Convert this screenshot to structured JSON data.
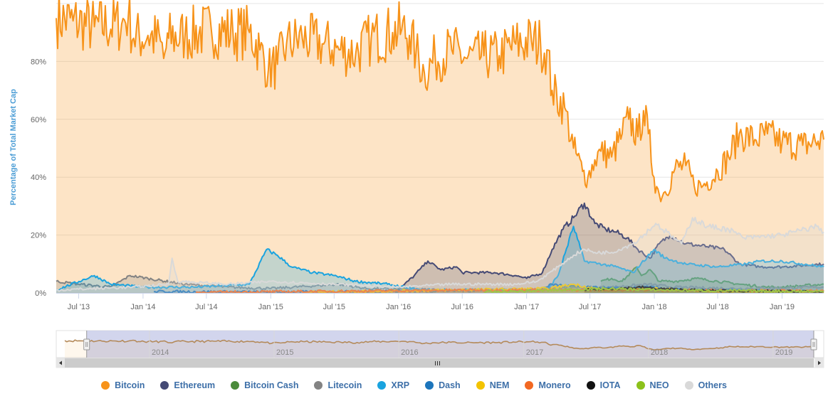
{
  "chart_data": {
    "type": "area",
    "ylabel": "Percentage of Total Market Cap",
    "ylim": [
      0,
      100
    ],
    "yticks": [
      {
        "value": 0,
        "label": "0%"
      },
      {
        "value": 20,
        "label": "20%"
      },
      {
        "value": 40,
        "label": "40%"
      },
      {
        "value": 60,
        "label": "60%"
      },
      {
        "value": 80,
        "label": "80%"
      }
    ],
    "xrange": [
      "2013-04-28",
      "2019-04-30"
    ],
    "xticks": [
      {
        "date": "2013-07-01",
        "label": "Jul '13"
      },
      {
        "date": "2014-01-01",
        "label": "Jan '14"
      },
      {
        "date": "2014-07-01",
        "label": "Jul '14"
      },
      {
        "date": "2015-01-01",
        "label": "Jan '15"
      },
      {
        "date": "2015-07-01",
        "label": "Jul '15"
      },
      {
        "date": "2016-01-01",
        "label": "Jan '16"
      },
      {
        "date": "2016-07-01",
        "label": "Jul '16"
      },
      {
        "date": "2017-01-01",
        "label": "Jan '17"
      },
      {
        "date": "2017-07-01",
        "label": "Jul '17"
      },
      {
        "date": "2018-01-01",
        "label": "Jan '18"
      },
      {
        "date": "2018-07-01",
        "label": "Jul '18"
      },
      {
        "date": "2019-01-01",
        "label": "Jan '19"
      }
    ],
    "navigator_labels": [
      {
        "date": "2014-01-01",
        "label": "2014"
      },
      {
        "date": "2015-01-01",
        "label": "2015"
      },
      {
        "date": "2016-01-01",
        "label": "2016"
      },
      {
        "date": "2017-01-01",
        "label": "2017"
      },
      {
        "date": "2018-01-01",
        "label": "2018"
      },
      {
        "date": "2019-01-01",
        "label": "2019"
      }
    ],
    "grid": true,
    "legend_position": "bottom",
    "series": [
      {
        "name": "Bitcoin",
        "color": "#f7931a",
        "points": [
          [
            "2013-04-28",
            95
          ],
          [
            "2013-06-15",
            94
          ],
          [
            "2013-08-15",
            92
          ],
          [
            "2013-11-01",
            93
          ],
          [
            "2013-11-20",
            96
          ],
          [
            "2013-12-05",
            88
          ],
          [
            "2014-01-15",
            89
          ],
          [
            "2014-02-20",
            87
          ],
          [
            "2014-03-01",
            81
          ],
          [
            "2014-03-15",
            88
          ],
          [
            "2014-05-01",
            89
          ],
          [
            "2014-07-15",
            91
          ],
          [
            "2014-09-15",
            90
          ],
          [
            "2014-11-01",
            90
          ],
          [
            "2014-12-01",
            84
          ],
          [
            "2014-12-25",
            77
          ],
          [
            "2015-01-20",
            79
          ],
          [
            "2015-02-15",
            86
          ],
          [
            "2015-04-01",
            88
          ],
          [
            "2015-06-01",
            86
          ],
          [
            "2015-07-15",
            84
          ],
          [
            "2015-09-01",
            83
          ],
          [
            "2015-10-15",
            88
          ],
          [
            "2015-12-15",
            90
          ],
          [
            "2016-01-10",
            91
          ],
          [
            "2016-02-01",
            89
          ],
          [
            "2016-02-20",
            83
          ],
          [
            "2016-03-15",
            76
          ],
          [
            "2016-04-15",
            81
          ],
          [
            "2016-06-01",
            84
          ],
          [
            "2016-07-15",
            81
          ],
          [
            "2016-09-01",
            82
          ],
          [
            "2016-10-15",
            82
          ],
          [
            "2016-12-01",
            86
          ],
          [
            "2017-01-15",
            87
          ],
          [
            "2017-02-10",
            86
          ],
          [
            "2017-02-28",
            84
          ],
          [
            "2017-03-15",
            70
          ],
          [
            "2017-04-20",
            64
          ],
          [
            "2017-05-15",
            50
          ],
          [
            "2017-06-10",
            42
          ],
          [
            "2017-06-25",
            40
          ],
          [
            "2017-07-15",
            46
          ],
          [
            "2017-08-01",
            49
          ],
          [
            "2017-09-01",
            47
          ],
          [
            "2017-10-01",
            55
          ],
          [
            "2017-10-20",
            60
          ],
          [
            "2017-11-15",
            54
          ],
          [
            "2017-12-01",
            63
          ],
          [
            "2017-12-15",
            55
          ],
          [
            "2017-12-31",
            40
          ],
          [
            "2018-01-15",
            34
          ],
          [
            "2018-02-01",
            35
          ],
          [
            "2018-03-01",
            43
          ],
          [
            "2018-04-01",
            44
          ],
          [
            "2018-04-25",
            37
          ],
          [
            "2018-05-20",
            37
          ],
          [
            "2018-07-01",
            42
          ],
          [
            "2018-08-01",
            47
          ],
          [
            "2018-09-01",
            55
          ],
          [
            "2018-10-15",
            53
          ],
          [
            "2018-11-20",
            55
          ],
          [
            "2019-01-01",
            52
          ],
          [
            "2019-03-01",
            51
          ],
          [
            "2019-04-30",
            53
          ]
        ]
      },
      {
        "name": "Ethereum",
        "color": "#454a75",
        "points": [
          [
            "2015-08-07",
            0.3
          ],
          [
            "2016-01-01",
            1
          ],
          [
            "2016-02-15",
            6
          ],
          [
            "2016-03-01",
            8
          ],
          [
            "2016-03-25",
            11
          ],
          [
            "2016-05-01",
            8
          ],
          [
            "2016-06-15",
            9
          ],
          [
            "2016-07-01",
            7
          ],
          [
            "2016-08-01",
            7
          ],
          [
            "2016-10-01",
            7
          ],
          [
            "2016-12-01",
            6
          ],
          [
            "2017-01-01",
            5
          ],
          [
            "2017-02-15",
            7
          ],
          [
            "2017-03-15",
            15
          ],
          [
            "2017-04-15",
            22
          ],
          [
            "2017-05-15",
            26
          ],
          [
            "2017-06-15",
            31
          ],
          [
            "2017-07-15",
            24
          ],
          [
            "2017-08-15",
            22
          ],
          [
            "2017-09-15",
            21
          ],
          [
            "2017-10-15",
            19
          ],
          [
            "2017-11-15",
            15
          ],
          [
            "2017-12-20",
            12
          ],
          [
            "2018-01-15",
            17
          ],
          [
            "2018-02-15",
            20
          ],
          [
            "2018-04-01",
            17
          ],
          [
            "2018-06-01",
            16
          ],
          [
            "2018-07-20",
            15
          ],
          [
            "2018-09-01",
            10
          ],
          [
            "2018-11-01",
            9
          ],
          [
            "2019-01-01",
            9
          ],
          [
            "2019-04-30",
            10
          ]
        ]
      },
      {
        "name": "Bitcoin Cash",
        "color": "#4b8b3b",
        "points": [
          [
            "2017-08-01",
            4
          ],
          [
            "2017-09-01",
            5
          ],
          [
            "2017-10-01",
            4
          ],
          [
            "2017-11-12",
            9
          ],
          [
            "2017-11-25",
            6
          ],
          [
            "2017-12-20",
            8
          ],
          [
            "2018-01-15",
            4
          ],
          [
            "2018-03-01",
            4
          ],
          [
            "2018-05-01",
            5
          ],
          [
            "2018-07-01",
            4
          ],
          [
            "2018-09-01",
            3
          ],
          [
            "2018-11-20",
            2
          ],
          [
            "2019-01-01",
            2
          ],
          [
            "2019-04-30",
            3
          ]
        ]
      },
      {
        "name": "Litecoin",
        "color": "#838383",
        "points": [
          [
            "2013-04-28",
            4
          ],
          [
            "2013-07-01",
            3
          ],
          [
            "2013-10-01",
            2
          ],
          [
            "2013-11-25",
            6
          ],
          [
            "2014-01-15",
            5
          ],
          [
            "2014-05-01",
            3
          ],
          [
            "2014-09-01",
            2
          ],
          [
            "2015-01-01",
            1.5
          ],
          [
            "2015-07-15",
            3
          ],
          [
            "2015-10-01",
            1.5
          ],
          [
            "2016-06-01",
            1
          ],
          [
            "2017-01-01",
            1
          ],
          [
            "2017-04-15",
            2
          ],
          [
            "2017-09-01",
            2
          ],
          [
            "2017-12-15",
            3
          ],
          [
            "2018-03-01",
            2
          ],
          [
            "2018-09-01",
            1.5
          ],
          [
            "2019-04-30",
            2
          ]
        ]
      },
      {
        "name": "XRP",
        "color": "#1aa3df",
        "points": [
          [
            "2013-04-28",
            1
          ],
          [
            "2013-08-15",
            6
          ],
          [
            "2013-10-01",
            3
          ],
          [
            "2014-01-01",
            2
          ],
          [
            "2014-06-01",
            2
          ],
          [
            "2014-11-01",
            3
          ],
          [
            "2014-12-20",
            15
          ],
          [
            "2015-01-20",
            13
          ],
          [
            "2015-03-01",
            9
          ],
          [
            "2015-05-01",
            7
          ],
          [
            "2015-07-01",
            6
          ],
          [
            "2015-09-01",
            4
          ],
          [
            "2015-12-01",
            3
          ],
          [
            "2016-03-01",
            1
          ],
          [
            "2016-09-01",
            1
          ],
          [
            "2017-03-01",
            1
          ],
          [
            "2017-04-01",
            6
          ],
          [
            "2017-05-15",
            23
          ],
          [
            "2017-06-15",
            11
          ],
          [
            "2017-09-15",
            9
          ],
          [
            "2017-11-01",
            7
          ],
          [
            "2017-12-31",
            15
          ],
          [
            "2018-02-01",
            12
          ],
          [
            "2018-04-01",
            10
          ],
          [
            "2018-07-01",
            9
          ],
          [
            "2018-09-20",
            10
          ],
          [
            "2018-11-01",
            11
          ],
          [
            "2019-01-01",
            11
          ],
          [
            "2019-04-30",
            9
          ]
        ]
      },
      {
        "name": "Dash",
        "color": "#1c75bc",
        "points": [
          [
            "2014-02-01",
            0.5
          ],
          [
            "2015-01-01",
            0.3
          ],
          [
            "2016-01-01",
            0.5
          ],
          [
            "2017-02-01",
            1
          ],
          [
            "2017-03-15",
            3
          ],
          [
            "2017-06-01",
            2
          ],
          [
            "2017-10-01",
            1.5
          ],
          [
            "2017-12-15",
            2
          ],
          [
            "2018-04-01",
            1
          ],
          [
            "2019-04-30",
            0.5
          ]
        ]
      },
      {
        "name": "NEM",
        "color": "#f3c300",
        "points": [
          [
            "2015-04-01",
            0.2
          ],
          [
            "2017-03-01",
            1.5
          ],
          [
            "2017-05-15",
            3
          ],
          [
            "2017-08-01",
            1
          ],
          [
            "2018-01-01",
            1.5
          ],
          [
            "2018-06-01",
            0.5
          ],
          [
            "2019-04-30",
            0.3
          ]
        ]
      },
      {
        "name": "Monero",
        "color": "#f26822",
        "points": [
          [
            "2014-06-01",
            0.2
          ],
          [
            "2016-08-01",
            1
          ],
          [
            "2017-01-01",
            1
          ],
          [
            "2017-06-01",
            1
          ],
          [
            "2018-01-01",
            1
          ],
          [
            "2019-04-30",
            0.6
          ]
        ]
      },
      {
        "name": "IOTA",
        "color": "#111111",
        "points": [
          [
            "2017-06-15",
            1
          ],
          [
            "2017-12-06",
            2
          ],
          [
            "2018-01-01",
            1.5
          ],
          [
            "2018-06-01",
            0.8
          ],
          [
            "2019-04-30",
            0.4
          ]
        ]
      },
      {
        "name": "NEO",
        "color": "#8cc11a",
        "points": [
          [
            "2016-09-01",
            0.2
          ],
          [
            "2017-08-15",
            1.5
          ],
          [
            "2018-01-15",
            1
          ],
          [
            "2018-06-01",
            0.8
          ],
          [
            "2019-04-30",
            0.5
          ]
        ]
      },
      {
        "name": "Others",
        "color": "#d9d9d9",
        "points": [
          [
            "2013-04-28",
            1
          ],
          [
            "2013-12-01",
            2
          ],
          [
            "2014-03-15",
            3
          ],
          [
            "2014-03-25",
            12
          ],
          [
            "2014-04-10",
            4
          ],
          [
            "2014-09-01",
            3
          ],
          [
            "2015-01-01",
            4
          ],
          [
            "2015-07-01",
            3
          ],
          [
            "2016-01-01",
            2
          ],
          [
            "2016-06-01",
            3
          ],
          [
            "2016-12-01",
            3
          ],
          [
            "2017-02-01",
            4
          ],
          [
            "2017-04-01",
            9
          ],
          [
            "2017-05-15",
            13
          ],
          [
            "2017-06-15",
            15
          ],
          [
            "2017-07-15",
            14
          ],
          [
            "2017-09-01",
            14
          ],
          [
            "2017-11-01",
            17
          ],
          [
            "2017-12-01",
            20
          ],
          [
            "2018-01-05",
            24
          ],
          [
            "2018-02-15",
            20
          ],
          [
            "2018-03-20",
            17
          ],
          [
            "2018-04-20",
            26
          ],
          [
            "2018-06-01",
            23
          ],
          [
            "2018-08-01",
            22
          ],
          [
            "2018-09-15",
            19
          ],
          [
            "2019-01-01",
            20
          ],
          [
            "2019-04-10",
            23
          ],
          [
            "2019-04-30",
            21
          ]
        ]
      }
    ]
  },
  "legend": [
    {
      "label": "Bitcoin",
      "color": "#f7931a"
    },
    {
      "label": "Ethereum",
      "color": "#454a75"
    },
    {
      "label": "Bitcoin Cash",
      "color": "#4b8b3b"
    },
    {
      "label": "Litecoin",
      "color": "#838383"
    },
    {
      "label": "XRP",
      "color": "#1aa3df"
    },
    {
      "label": "Dash",
      "color": "#1c75bc"
    },
    {
      "label": "NEM",
      "color": "#f3c300"
    },
    {
      "label": "Monero",
      "color": "#f26822"
    },
    {
      "label": "IOTA",
      "color": "#111111"
    },
    {
      "label": "NEO",
      "color": "#8cc11a"
    },
    {
      "label": "Others",
      "color": "#d9d9d9"
    }
  ],
  "navigator": {
    "range_start": "2013-07-01",
    "range_end": "2019-04-30",
    "scrollbar_grip_icon": "three-vertical-bars",
    "left_arrow_icon": "triangle-left",
    "right_arrow_icon": "triangle-right"
  }
}
